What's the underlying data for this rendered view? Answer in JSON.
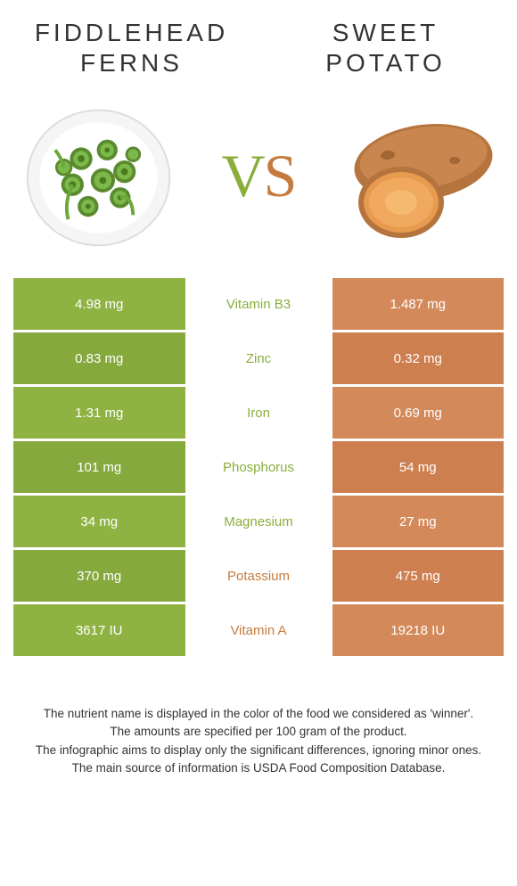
{
  "titles": {
    "left": "FIDDLEHEAD FERNS",
    "right": "SWEET POTATO"
  },
  "vs": {
    "v": "V",
    "s": "S"
  },
  "colors": {
    "left_food": "#8aae3c",
    "right_food": "#c67b3e",
    "left_cell": "#8aae3c",
    "right_cell": "#d28a59",
    "row_alt_darken": 0.05
  },
  "comparison": {
    "rows": [
      {
        "nutrient": "Vitamin B3",
        "left": "4.98 mg",
        "right": "1.487 mg",
        "winner": "left"
      },
      {
        "nutrient": "Zinc",
        "left": "0.83 mg",
        "right": "0.32 mg",
        "winner": "left"
      },
      {
        "nutrient": "Iron",
        "left": "1.31 mg",
        "right": "0.69 mg",
        "winner": "left"
      },
      {
        "nutrient": "Phosphorus",
        "left": "101 mg",
        "right": "54 mg",
        "winner": "left"
      },
      {
        "nutrient": "Magnesium",
        "left": "34 mg",
        "right": "27 mg",
        "winner": "left"
      },
      {
        "nutrient": "Potassium",
        "left": "370 mg",
        "right": "475 mg",
        "winner": "right"
      },
      {
        "nutrient": "Vitamin A",
        "left": "3617 IU",
        "right": "19218 IU",
        "winner": "right"
      }
    ],
    "left_colors": [
      "#8fb343",
      "#86a93e",
      "#8fb343",
      "#86a93e",
      "#8fb343",
      "#86a93e",
      "#8fb343"
    ],
    "right_colors": [
      "#d3895a",
      "#cd7f50",
      "#d3895a",
      "#cd7f50",
      "#d3895a",
      "#cd7f50",
      "#d3895a"
    ],
    "nutrient_fontsize": 15,
    "value_fontsize": 15,
    "value_color": "#ffffff"
  },
  "footer": {
    "lines": [
      "The nutrient name is displayed in the color of the food we considered as 'winner'.",
      "The amounts are specified per 100 gram of the product.",
      "The infographic aims to display only the significant differences, ignoring minor ones.",
      "The main source of information is USDA Food Composition Database."
    ]
  }
}
